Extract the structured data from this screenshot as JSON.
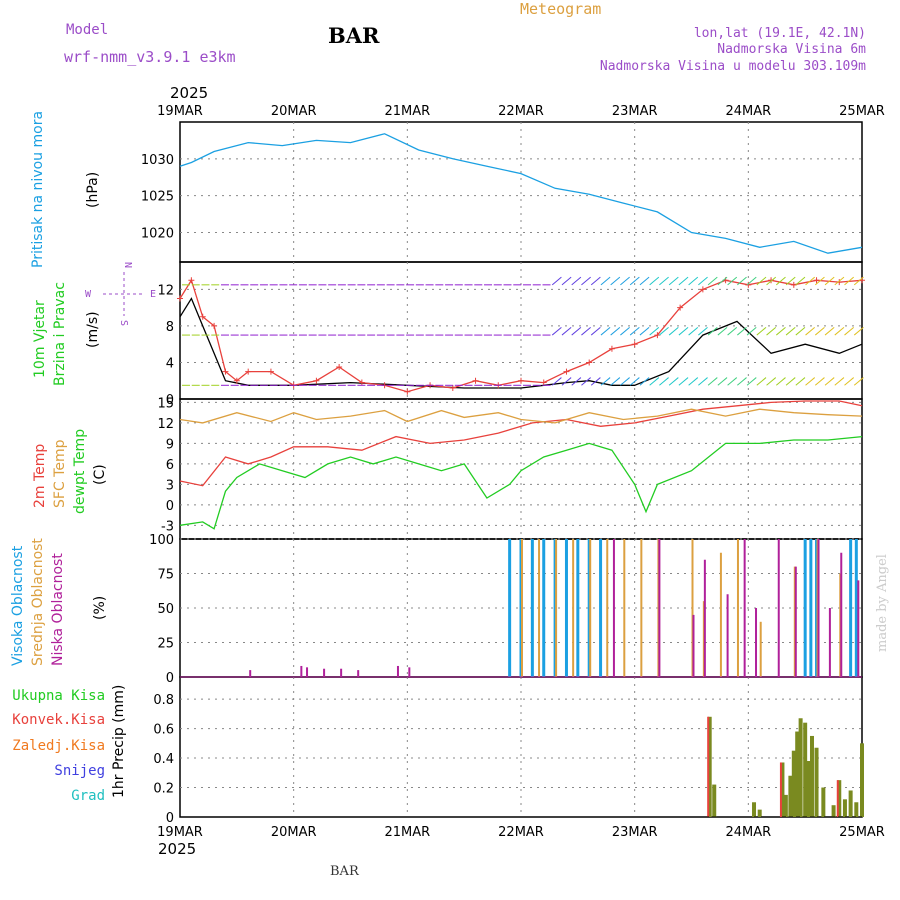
{
  "header": {
    "model_label": "Model",
    "model_name": "wrf-nmm_v3.9.1 e3km",
    "station": "BAR",
    "title": "Meteogram",
    "lonlat": "lon,lat (19.1E, 42.1N)",
    "altitude": "Nadmorska Visina 6m",
    "model_altitude": "Nadmorska Visina u modelu 303.109m",
    "year_top": "2025",
    "year_bottom": "2025",
    "footer_station": "BAR",
    "credit": "made by Angel"
  },
  "colors": {
    "pressure": "#1ba0e2",
    "temp2m": "#e8413c",
    "sfc": "#dca040",
    "dewpt": "#22cc22",
    "high_cloud": "#1ba0e2",
    "mid_cloud": "#dca040",
    "low_cloud": "#b0209a",
    "total_precip": "#7a8a20",
    "conv_precip": "#e8413c",
    "freezing": "#f07a20",
    "snow": "#4040e0",
    "hail": "#20c0c0",
    "wind_violet": "#9020d0"
  },
  "chart_data": [
    {
      "id": "pressure",
      "type": "line",
      "ylabel": "(hPa)",
      "title_lines": [
        "Pritisak na nivou mora"
      ],
      "categories": [
        "19MAR",
        "20MAR",
        "21MAR",
        "22MAR",
        "23MAR",
        "24MAR",
        "25MAR"
      ],
      "ylim": [
        1016,
        1035
      ],
      "yticks": [
        1020,
        1025,
        1030
      ],
      "series": [
        {
          "name": "pressure",
          "x": [
            0,
            0.1,
            0.3,
            0.6,
            0.9,
            1.2,
            1.5,
            1.8,
            2.1,
            2.4,
            2.7,
            3.0,
            3.3,
            3.6,
            3.9,
            4.2,
            4.5,
            4.8,
            5.1,
            5.4,
            5.7,
            6.0
          ],
          "values": [
            1029,
            1029.5,
            1031,
            1032.2,
            1031.8,
            1032.5,
            1032.2,
            1033.4,
            1031.2,
            1030,
            1029,
            1028,
            1026,
            1025.2,
            1024,
            1022.8,
            1020,
            1019.2,
            1018,
            1018.8,
            1017.2,
            1018
          ]
        }
      ]
    },
    {
      "id": "wind",
      "type": "line",
      "ylabel": "(m/s)",
      "title_lines": [
        "10m Vjetar",
        "Brzina i Pravac"
      ],
      "legend": {
        "n": "N",
        "s": "S",
        "w": "W",
        "e": "E"
      },
      "ylim": [
        0,
        15
      ],
      "yticks": [
        0,
        4,
        8,
        12
      ],
      "series": [
        {
          "name": "speed",
          "x": [
            0,
            0.1,
            0.2,
            0.3,
            0.4,
            0.6,
            1.0,
            1.5,
            2.0,
            2.5,
            3.0,
            3.2,
            3.4,
            3.6,
            3.8,
            4.0,
            4.3,
            4.6,
            4.9,
            5.2,
            5.5,
            5.8,
            6.0
          ],
          "values": [
            9,
            11,
            8,
            5,
            2,
            1.5,
            1.5,
            1.8,
            1.5,
            1.2,
            1.2,
            1.5,
            1.8,
            2.0,
            1.5,
            1.5,
            3.0,
            7.0,
            8.5,
            5.0,
            6.0,
            5.0,
            6.0
          ]
        },
        {
          "name": "gust",
          "x": [
            0,
            0.1,
            0.2,
            0.3,
            0.4,
            0.5,
            0.6,
            0.8,
            1.0,
            1.2,
            1.4,
            1.6,
            1.8,
            2.0,
            2.2,
            2.4,
            2.6,
            2.8,
            3.0,
            3.2,
            3.4,
            3.6,
            3.8,
            4.0,
            4.2,
            4.4,
            4.6,
            4.8,
            5.0,
            5.2,
            5.4,
            5.6,
            5.8,
            6.0
          ],
          "values": [
            11,
            13,
            9,
            8,
            3,
            2,
            3,
            3,
            1.5,
            2,
            3.5,
            1.8,
            1.5,
            0.8,
            1.5,
            1.2,
            2,
            1.5,
            2,
            1.8,
            3,
            4,
            5.5,
            6,
            7,
            10,
            12,
            13,
            12.5,
            13,
            12.5,
            13,
            12.8,
            13
          ]
        }
      ],
      "arrow_rows": [
        12.5,
        7,
        1.5
      ]
    },
    {
      "id": "temperature",
      "type": "line",
      "ylabel": "(C)",
      "title_lines": [
        "2m Temp",
        "SFC Temp",
        "dewpt Temp"
      ],
      "ylim": [
        -5,
        15.5
      ],
      "yticks": [
        -3,
        0,
        3,
        6,
        9,
        12,
        15
      ],
      "series": [
        {
          "name": "2m Temp",
          "x": [
            0,
            0.2,
            0.4,
            0.6,
            0.8,
            1.0,
            1.3,
            1.6,
            1.9,
            2.2,
            2.5,
            2.8,
            3.1,
            3.4,
            3.7,
            4.0,
            4.3,
            4.6,
            4.9,
            5.2,
            5.5,
            5.8,
            6.0
          ],
          "values": [
            3.5,
            2.8,
            7,
            6,
            7,
            8.5,
            8.5,
            8,
            10,
            9,
            9.5,
            10.5,
            12,
            12.5,
            11.5,
            12,
            13,
            14,
            14.5,
            15,
            15.2,
            15.2,
            14.5
          ]
        },
        {
          "name": "SFC Temp",
          "x": [
            0,
            0.2,
            0.5,
            0.8,
            1.0,
            1.2,
            1.5,
            1.8,
            2.0,
            2.3,
            2.5,
            2.8,
            3.0,
            3.3,
            3.6,
            3.9,
            4.2,
            4.5,
            4.8,
            5.1,
            5.4,
            5.7,
            6.0
          ],
          "values": [
            12.5,
            12,
            13.5,
            12.2,
            13.5,
            12.5,
            13,
            13.8,
            12.2,
            13.8,
            12.8,
            13.5,
            12.5,
            12,
            13.5,
            12.5,
            13,
            14,
            13,
            14,
            13.5,
            13.2,
            13
          ]
        },
        {
          "name": "dewpt Temp",
          "x": [
            0,
            0.2,
            0.3,
            0.4,
            0.5,
            0.7,
            0.9,
            1.1,
            1.3,
            1.5,
            1.7,
            1.9,
            2.1,
            2.3,
            2.5,
            2.7,
            2.9,
            3.0,
            3.2,
            3.4,
            3.6,
            3.8,
            4.0,
            4.1,
            4.2,
            4.5,
            4.8,
            5.1,
            5.4,
            5.7,
            6.0
          ],
          "values": [
            -3,
            -2.5,
            -3.5,
            2,
            4,
            6,
            5,
            4,
            6,
            7,
            6,
            7,
            6,
            5,
            6,
            1,
            3,
            5,
            7,
            8,
            9,
            8,
            3,
            -1,
            3,
            5,
            9,
            9,
            9.5,
            9.5,
            10
          ]
        }
      ]
    },
    {
      "id": "clouds",
      "type": "bar",
      "ylabel": "(%)",
      "title_lines": [
        "Visoka Oblacnost",
        "Srednja Oblacnost",
        "Niska Oblacnost"
      ],
      "ylim": [
        0,
        100
      ],
      "yticks": [
        0,
        25,
        50,
        75,
        100
      ],
      "series": [
        {
          "name": "Visoka Oblacnost",
          "x": [
            2.9,
            3.0,
            3.1,
            3.2,
            3.3,
            3.4,
            3.5,
            3.6,
            3.7,
            5.5,
            5.55,
            5.6,
            5.9,
            5.95
          ],
          "values": [
            100,
            100,
            100,
            100,
            100,
            100,
            100,
            100,
            100,
            100,
            100,
            100,
            100,
            100
          ]
        },
        {
          "name": "Srednja Oblacnost",
          "x": [
            3.0,
            3.15,
            3.3,
            3.45,
            3.6,
            3.75,
            3.9,
            4.05,
            4.2,
            4.5,
            4.6,
            4.75,
            4.9,
            5.1,
            5.4,
            5.6,
            5.8
          ],
          "values": [
            100,
            100,
            100,
            100,
            100,
            100,
            100,
            100,
            100,
            100,
            55,
            90,
            100,
            40,
            80,
            100,
            75
          ]
        },
        {
          "name": "Niska Oblacnost",
          "x": [
            0.6,
            1.05,
            1.1,
            1.25,
            1.4,
            1.55,
            1.9,
            2.0,
            3.8,
            4.2,
            4.5,
            4.6,
            4.8,
            4.95,
            5.05,
            5.25,
            5.4,
            5.6,
            5.7,
            5.8,
            5.95
          ],
          "values": [
            5,
            8,
            7,
            6,
            6,
            5,
            8,
            7,
            100,
            100,
            45,
            85,
            60,
            100,
            50,
            100,
            80,
            100,
            50,
            90,
            70
          ]
        }
      ]
    },
    {
      "id": "precip",
      "type": "bar",
      "ylabel": "1hr Precip (mm)",
      "legend": [
        "Ukupna Kisa",
        "Konvek.Kisa",
        "Zaledj.Kisa",
        "Snijeg",
        "Grad"
      ],
      "categories": [
        "19MAR",
        "20MAR",
        "21MAR",
        "22MAR",
        "23MAR",
        "24MAR",
        "25MAR"
      ],
      "ylim": [
        0,
        0.95
      ],
      "yticks": [
        0,
        0.2,
        0.4,
        0.6,
        0.8
      ],
      "series": [
        {
          "name": "Ukupna Kisa",
          "x": [
            4.66,
            4.7,
            5.05,
            5.1,
            5.3,
            5.33,
            5.37,
            5.4,
            5.43,
            5.46,
            5.5,
            5.53,
            5.56,
            5.6,
            5.66,
            5.75,
            5.8,
            5.85,
            5.9,
            5.95,
            6.0
          ],
          "values": [
            0.68,
            0.22,
            0.1,
            0.05,
            0.37,
            0.15,
            0.28,
            0.45,
            0.58,
            0.67,
            0.64,
            0.38,
            0.55,
            0.47,
            0.2,
            0.08,
            0.25,
            0.12,
            0.18,
            0.1,
            0.5
          ]
        },
        {
          "name": "Konvek.Kisa",
          "x": [
            4.66,
            5.3,
            5.8
          ],
          "values": [
            0.68,
            0.37,
            0.25
          ]
        }
      ]
    }
  ]
}
